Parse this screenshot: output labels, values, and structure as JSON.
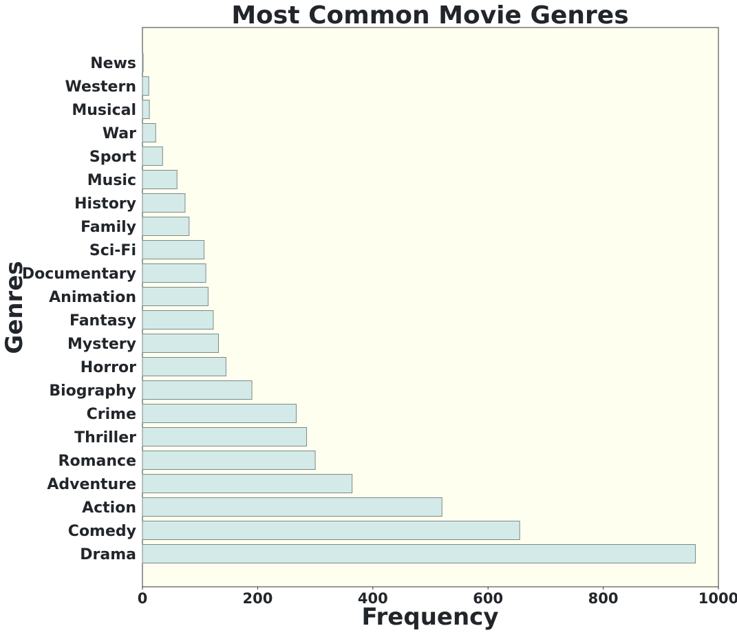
{
  "chart_data": {
    "type": "bar",
    "orientation": "horizontal",
    "title": "Most Common Movie Genres",
    "xlabel": "Frequency",
    "ylabel": "Genres",
    "xlim": [
      0,
      1000
    ],
    "xticks": [
      0,
      200,
      400,
      600,
      800,
      1000
    ],
    "grid": false,
    "categories": [
      "Drama",
      "Comedy",
      "Action",
      "Adventure",
      "Romance",
      "Thriller",
      "Crime",
      "Biography",
      "Horror",
      "Mystery",
      "Fantasy",
      "Animation",
      "Documentary",
      "Sci-Fi",
      "Family",
      "History",
      "Music",
      "Sport",
      "War",
      "Musical",
      "Western",
      "News"
    ],
    "values": [
      960,
      655,
      520,
      364,
      300,
      285,
      267,
      190,
      145,
      132,
      123,
      114,
      110,
      107,
      81,
      74,
      60,
      35,
      23,
      12,
      11,
      1
    ],
    "colors": {
      "plot_background": "#FFFFF0",
      "bar_fill": "#D4EAE8",
      "bar_edge": "#7A8A88",
      "axis": "#333333",
      "text": "#22262B"
    }
  }
}
